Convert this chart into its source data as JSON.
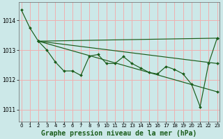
{
  "background_color": "#cce8e8",
  "grid_color": "#f0b0b0",
  "line_color": "#1a5c1a",
  "xlabel": "Graphe pression niveau de la mer (hPa)",
  "xlabel_fontsize": 7,
  "yticks": [
    1011,
    1012,
    1013,
    1014
  ],
  "xticks": [
    0,
    1,
    2,
    3,
    4,
    5,
    6,
    7,
    8,
    9,
    10,
    11,
    12,
    13,
    14,
    15,
    16,
    17,
    18,
    19,
    20,
    21,
    22,
    23
  ],
  "xlim": [
    -0.3,
    23.3
  ],
  "ylim": [
    1010.6,
    1014.6
  ],
  "line1_x": [
    0,
    1,
    2,
    3,
    4,
    5,
    6,
    7,
    8,
    9,
    10,
    11,
    12,
    13,
    14,
    15,
    16,
    17,
    18,
    19,
    20,
    21,
    22,
    23
  ],
  "line1_y": [
    1014.35,
    1013.75,
    1013.3,
    1013.0,
    1012.6,
    1012.3,
    1012.3,
    1012.15,
    1012.8,
    1012.85,
    1012.55,
    1012.55,
    1012.78,
    1012.55,
    1012.4,
    1012.25,
    1012.2,
    1012.45,
    1012.35,
    1012.2,
    1011.85,
    1011.1,
    1012.55,
    1013.4
  ],
  "line2_x": [
    2,
    23
  ],
  "line2_y": [
    1013.3,
    1013.4
  ],
  "line3_x": [
    2,
    23
  ],
  "line3_y": [
    1013.3,
    1012.55
  ],
  "line4_x": [
    2,
    23
  ],
  "line4_y": [
    1013.3,
    1011.6
  ]
}
